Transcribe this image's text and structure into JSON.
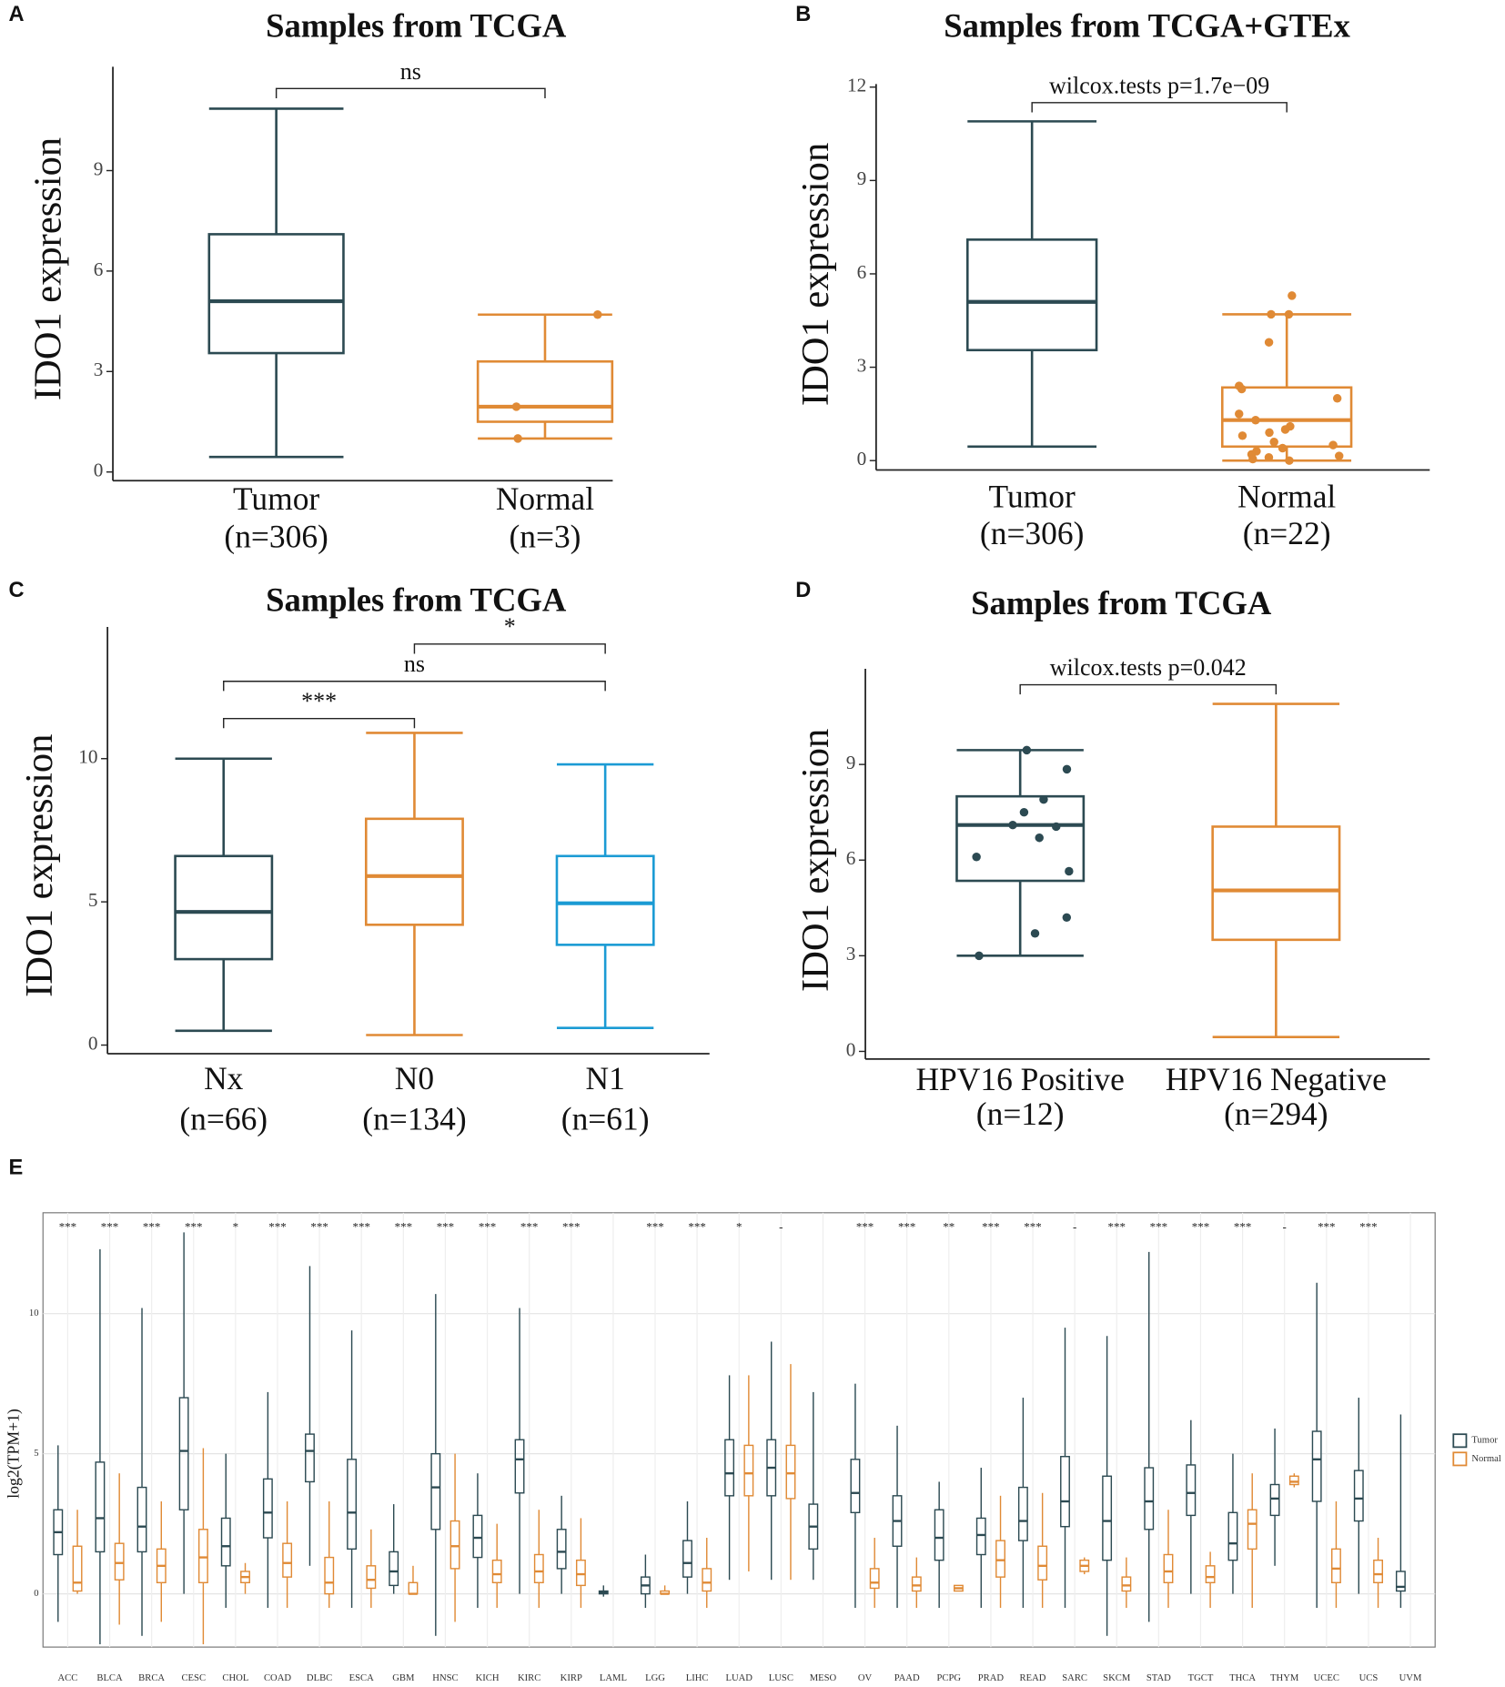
{
  "chart_data": [
    {
      "type": "box",
      "panel": "A",
      "title": "Samples from TCGA",
      "y_label": "IDO1 expression",
      "categories": [
        "Tumor",
        "Normal"
      ],
      "counts": [
        "(n=306)",
        "(n=3)"
      ],
      "ylim": [
        -0.26,
        12.1
      ],
      "yticks": [
        0,
        3,
        6,
        9
      ],
      "boxes": [
        {
          "color": "#2c4a52",
          "whisker_low": 0.45,
          "q1": 3.55,
          "median": 5.1,
          "q3": 7.1,
          "whisker_high": 10.85,
          "points": []
        },
        {
          "color": "#e08a35",
          "whisker_low": 1.0,
          "q1": 1.5,
          "median": 1.95,
          "q3": 3.3,
          "whisker_high": 4.7,
          "points": [
            4.7,
            1.95,
            1.0
          ]
        }
      ],
      "comparisons": [
        {
          "from": 0,
          "to": 1,
          "y": 11.45,
          "label": "ns"
        }
      ]
    },
    {
      "type": "box",
      "panel": "B",
      "title": "Samples from TCGA+GTEx",
      "y_label": "IDO1 expression",
      "categories": [
        "Tumor",
        "Normal"
      ],
      "counts": [
        "(n=306)",
        "(n=22)"
      ],
      "ylim": [
        -0.3,
        12.1
      ],
      "yticks": [
        0,
        3,
        6,
        9,
        12
      ],
      "boxes": [
        {
          "color": "#2c4a52",
          "whisker_low": 0.45,
          "q1": 3.55,
          "median": 5.1,
          "q3": 7.1,
          "whisker_high": 10.9,
          "points": []
        },
        {
          "color": "#e08a35",
          "whisker_low": 0,
          "q1": 0.45,
          "median": 1.3,
          "q3": 2.35,
          "whisker_high": 4.7,
          "points": [
            5.3,
            4.7,
            4.7,
            3.8,
            2.4,
            2.3,
            2.0,
            1.5,
            1.3,
            1.1,
            1.0,
            0.9,
            0.8,
            0.6,
            0.5,
            0.4,
            0.3,
            0.2,
            0.15,
            0.1,
            0.05,
            0
          ]
        }
      ],
      "comparisons": [
        {
          "from": 0,
          "to": 1,
          "y": 11.5,
          "label": "wilcox.tests p=1.7e−09"
        }
      ]
    },
    {
      "type": "box",
      "panel": "C",
      "title": "Samples from TCGA",
      "y_label": "IDO1 expression",
      "categories": [
        "Nx",
        "N0",
        "N1"
      ],
      "counts": [
        "(n=66)",
        "(n=134)",
        "(n=61)"
      ],
      "ylim": [
        -0.3,
        14.6
      ],
      "yticks": [
        0,
        5,
        10
      ],
      "boxes": [
        {
          "color": "#2c4a52",
          "whisker_low": 0.5,
          "q1": 3.0,
          "median": 4.65,
          "q3": 6.6,
          "whisker_high": 10.0,
          "points": []
        },
        {
          "color": "#e08a35",
          "whisker_low": 0.35,
          "q1": 4.2,
          "median": 5.9,
          "q3": 7.9,
          "whisker_high": 10.9,
          "points": []
        },
        {
          "color": "#1b9bd4",
          "whisker_low": 0.6,
          "q1": 3.5,
          "median": 4.95,
          "q3": 6.6,
          "whisker_high": 9.8,
          "points": []
        }
      ],
      "comparisons": [
        {
          "from": 0,
          "to": 1,
          "y": 11.4,
          "label": "***"
        },
        {
          "from": 0,
          "to": 2,
          "y": 12.7,
          "label": "ns"
        },
        {
          "from": 1,
          "to": 2,
          "y": 14.0,
          "label": "*"
        }
      ]
    },
    {
      "type": "box",
      "panel": "D",
      "title": "Samples from TCGA",
      "y_label": "IDO1 expression",
      "categories": [
        "HPV16 Positive",
        "HPV16 Negative"
      ],
      "counts": [
        "(n=12)",
        "(n=294)"
      ],
      "ylim": [
        -0.24,
        12.0
      ],
      "yticks": [
        0,
        3,
        6,
        9
      ],
      "boxes": [
        {
          "color": "#2c4a52",
          "whisker_low": 3.0,
          "q1": 5.35,
          "median": 7.1,
          "q3": 8.0,
          "whisker_high": 9.45,
          "points": [
            9.45,
            8.85,
            7.9,
            7.5,
            7.1,
            7.05,
            6.7,
            6.1,
            5.65,
            4.2,
            3.7,
            3.0
          ]
        },
        {
          "color": "#e08a35",
          "whisker_low": 0.45,
          "q1": 3.5,
          "median": 5.05,
          "q3": 7.05,
          "whisker_high": 10.9,
          "points": []
        }
      ],
      "comparisons": [
        {
          "from": 0,
          "to": 1,
          "y": 11.5,
          "label": "wilcox.tests p=0.042"
        }
      ]
    },
    {
      "type": "pancancer",
      "panel": "E",
      "y_label": "log2(TPM+1)",
      "ylim": [
        -1.9,
        13.6
      ],
      "yticks": [
        0,
        5,
        10
      ],
      "categories": [
        "ACC",
        "BLCA",
        "BRCA",
        "CESC",
        "CHOL",
        "COAD",
        "DLBC",
        "ESCA",
        "GBM",
        "HNSC",
        "KICH",
        "KIRC",
        "KIRP",
        "LAML",
        "LGG",
        "LIHC",
        "LUAD",
        "LUSC",
        "MESO",
        "OV",
        "PAAD",
        "PCPG",
        "PRAD",
        "READ",
        "SARC",
        "SKCM",
        "STAD",
        "TGCT",
        "THCA",
        "THYM",
        "UCEC",
        "UCS",
        "UVM"
      ],
      "significance": [
        "***",
        "***",
        "***",
        "***",
        "*",
        "***",
        "***",
        "***",
        "***",
        "***",
        "***",
        "***",
        "***",
        null,
        "***",
        "***",
        "*",
        "-",
        null,
        "***",
        "***",
        "**",
        "***",
        "***",
        "-",
        "***",
        "***",
        "***",
        "***",
        "-",
        "***",
        "***",
        null
      ],
      "series": [
        {
          "name": "Tumor",
          "color": "#2c4a52",
          "boxes": [
            [
              -1.0,
              1.4,
              2.2,
              3.0,
              5.3
            ],
            [
              -1.8,
              1.5,
              2.7,
              4.7,
              12.3
            ],
            [
              -1.5,
              1.5,
              2.4,
              3.8,
              10.2
            ],
            [
              0,
              3.0,
              5.1,
              7.0,
              12.9
            ],
            [
              -0.5,
              1.0,
              1.7,
              2.7,
              5.0
            ],
            [
              -0.5,
              2.0,
              2.9,
              4.1,
              7.2
            ],
            [
              1.0,
              4.0,
              5.1,
              5.7,
              11.7
            ],
            [
              -0.5,
              1.6,
              2.9,
              4.8,
              9.4
            ],
            [
              0,
              0.3,
              0.8,
              1.5,
              3.2
            ],
            [
              -1.5,
              2.3,
              3.8,
              5.0,
              10.7
            ],
            [
              -0.5,
              1.3,
              2.0,
              2.8,
              4.3
            ],
            [
              0,
              3.6,
              4.8,
              5.5,
              10.2
            ],
            [
              0,
              0.9,
              1.5,
              2.3,
              3.5
            ],
            [
              -0.1,
              0,
              0.05,
              0.1,
              0.3
            ],
            [
              -0.5,
              0,
              0.3,
              0.6,
              1.4
            ],
            [
              0,
              0.6,
              1.1,
              1.9,
              3.3
            ],
            [
              0.5,
              3.5,
              4.3,
              5.5,
              7.8
            ],
            [
              0.5,
              3.5,
              4.5,
              5.5,
              9.0
            ],
            [
              0.5,
              1.6,
              2.4,
              3.2,
              7.2
            ],
            [
              -0.5,
              2.9,
              3.6,
              4.8,
              7.5
            ],
            [
              -0.5,
              1.7,
              2.6,
              3.5,
              6.0
            ],
            [
              -0.5,
              1.2,
              2.0,
              3.0,
              4.0
            ],
            [
              -0.5,
              1.4,
              2.1,
              2.7,
              4.5
            ],
            [
              -0.5,
              1.9,
              2.6,
              3.8,
              7.0
            ],
            [
              -0.5,
              2.4,
              3.3,
              4.9,
              9.5
            ],
            [
              -1.5,
              1.2,
              2.6,
              4.2,
              9.2
            ],
            [
              -1.0,
              2.3,
              3.3,
              4.5,
              12.2
            ],
            [
              0,
              2.8,
              3.6,
              4.6,
              6.2
            ],
            [
              0,
              1.2,
              1.8,
              2.9,
              5.0
            ],
            [
              1.0,
              2.8,
              3.4,
              3.9,
              5.9
            ],
            [
              -0.5,
              3.3,
              4.8,
              5.8,
              11.1
            ],
            [
              0,
              2.6,
              3.4,
              4.4,
              7.0
            ],
            [
              -0.5,
              0.1,
              0.25,
              0.8,
              6.4
            ]
          ]
        },
        {
          "name": "Normal",
          "color": "#e08a35",
          "boxes": [
            [
              0,
              0.1,
              0.4,
              1.7,
              3.0
            ],
            [
              -1.1,
              0.5,
              1.1,
              1.8,
              4.3
            ],
            [
              -1.0,
              0.4,
              1.0,
              1.6,
              3.3
            ],
            [
              -1.8,
              0.4,
              1.3,
              2.3,
              5.2
            ],
            [
              0,
              0.4,
              0.6,
              0.8,
              1.1
            ],
            [
              -0.5,
              0.6,
              1.1,
              1.8,
              3.3
            ],
            [
              -0.5,
              0,
              0.4,
              1.3,
              3.3
            ],
            [
              -0.5,
              0.2,
              0.5,
              1.0,
              2.3
            ],
            [
              0,
              0,
              0,
              0.4,
              1.0
            ],
            [
              -1.0,
              0.9,
              1.7,
              2.6,
              5.0
            ],
            [
              -0.5,
              0.4,
              0.7,
              1.2,
              2.5
            ],
            [
              -0.5,
              0.4,
              0.8,
              1.4,
              3.0
            ],
            [
              -0.5,
              0.3,
              0.7,
              1.2,
              2.7
            ],
            null,
            [
              0,
              0,
              0,
              0.1,
              0.3
            ],
            [
              -0.5,
              0.1,
              0.4,
              0.9,
              2.0
            ],
            [
              0.8,
              3.5,
              4.3,
              5.3,
              7.8
            ],
            [
              0.5,
              3.4,
              4.3,
              5.3,
              8.2
            ],
            null,
            [
              -0.5,
              0.2,
              0.4,
              0.9,
              2.0
            ],
            [
              -0.5,
              0.1,
              0.3,
              0.6,
              1.3
            ],
            [
              0.1,
              0.1,
              0.2,
              0.3,
              0.3
            ],
            [
              -0.5,
              0.6,
              1.2,
              1.9,
              3.5
            ],
            [
              -0.5,
              0.5,
              1.0,
              1.7,
              3.6
            ],
            [
              0.7,
              0.8,
              1.0,
              1.2,
              1.3
            ],
            [
              -0.5,
              0.1,
              0.3,
              0.6,
              1.3
            ],
            [
              -0.5,
              0.4,
              0.8,
              1.4,
              3.0
            ],
            [
              -0.5,
              0.4,
              0.6,
              1.0,
              1.5
            ],
            [
              -0.5,
              1.6,
              2.5,
              3.0,
              4.3
            ],
            [
              3.8,
              3.9,
              4.0,
              4.2,
              4.3
            ],
            [
              -0.5,
              0.4,
              0.9,
              1.6,
              3.3
            ],
            [
              -0.5,
              0.4,
              0.7,
              1.2,
              2.0
            ],
            null
          ]
        }
      ]
    }
  ]
}
